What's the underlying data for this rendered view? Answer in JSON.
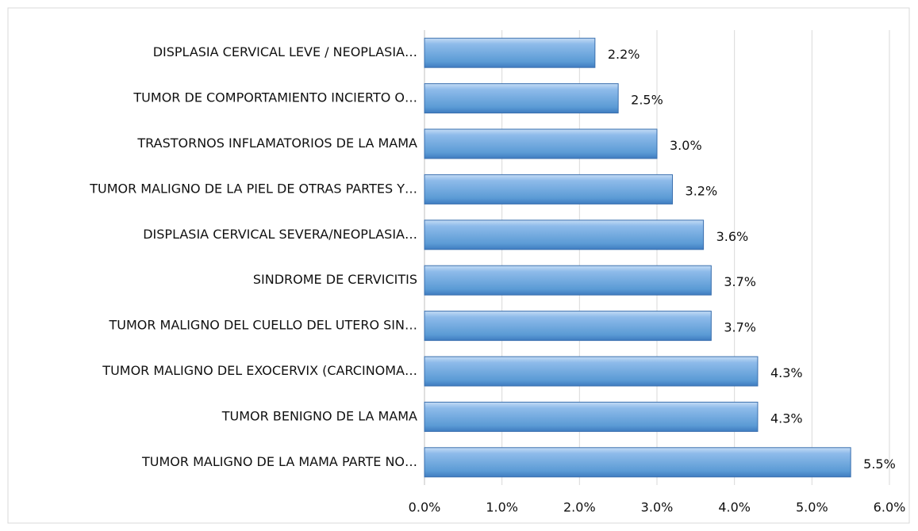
{
  "chart_data": {
    "type": "bar",
    "orientation": "horizontal",
    "categories": [
      "DISPLASIA CERVICAL LEVE / NEOPLASIA…",
      "TUMOR DE COMPORTAMIENTO INCIERTO O…",
      "TRASTORNOS INFLAMATORIOS DE LA MAMA",
      "TUMOR MALIGNO DE LA PIEL DE OTRAS PARTES Y…",
      "DISPLASIA CERVICAL SEVERA/NEOPLASIA…",
      "SINDROME DE CERVICITIS",
      "TUMOR MALIGNO DEL CUELLO DEL UTERO SIN…",
      "TUMOR MALIGNO DEL EXOCERVIX (CARCINOMA…",
      "TUMOR BENIGNO DE LA MAMA",
      "TUMOR MALIGNO DE LA MAMA PARTE NO…"
    ],
    "values": [
      2.2,
      2.5,
      3.0,
      3.2,
      3.6,
      3.7,
      3.7,
      4.3,
      4.3,
      5.5
    ],
    "value_labels": [
      "2.2%",
      "2.5%",
      "3.0%",
      "3.2%",
      "3.6%",
      "3.7%",
      "3.7%",
      "4.3%",
      "4.3%",
      "5.5%"
    ],
    "color": "#5b9bd5",
    "xlim": [
      0,
      6
    ],
    "xticks": [
      {
        "value": 0,
        "label": "0.0%"
      },
      {
        "value": 1,
        "label": "1.0%"
      },
      {
        "value": 2,
        "label": "2.0%"
      },
      {
        "value": 3,
        "label": "3.0%"
      },
      {
        "value": 4,
        "label": "4.0%"
      },
      {
        "value": 5,
        "label": "5.0%"
      },
      {
        "value": 6,
        "label": "6.0%"
      }
    ],
    "grid": true
  }
}
